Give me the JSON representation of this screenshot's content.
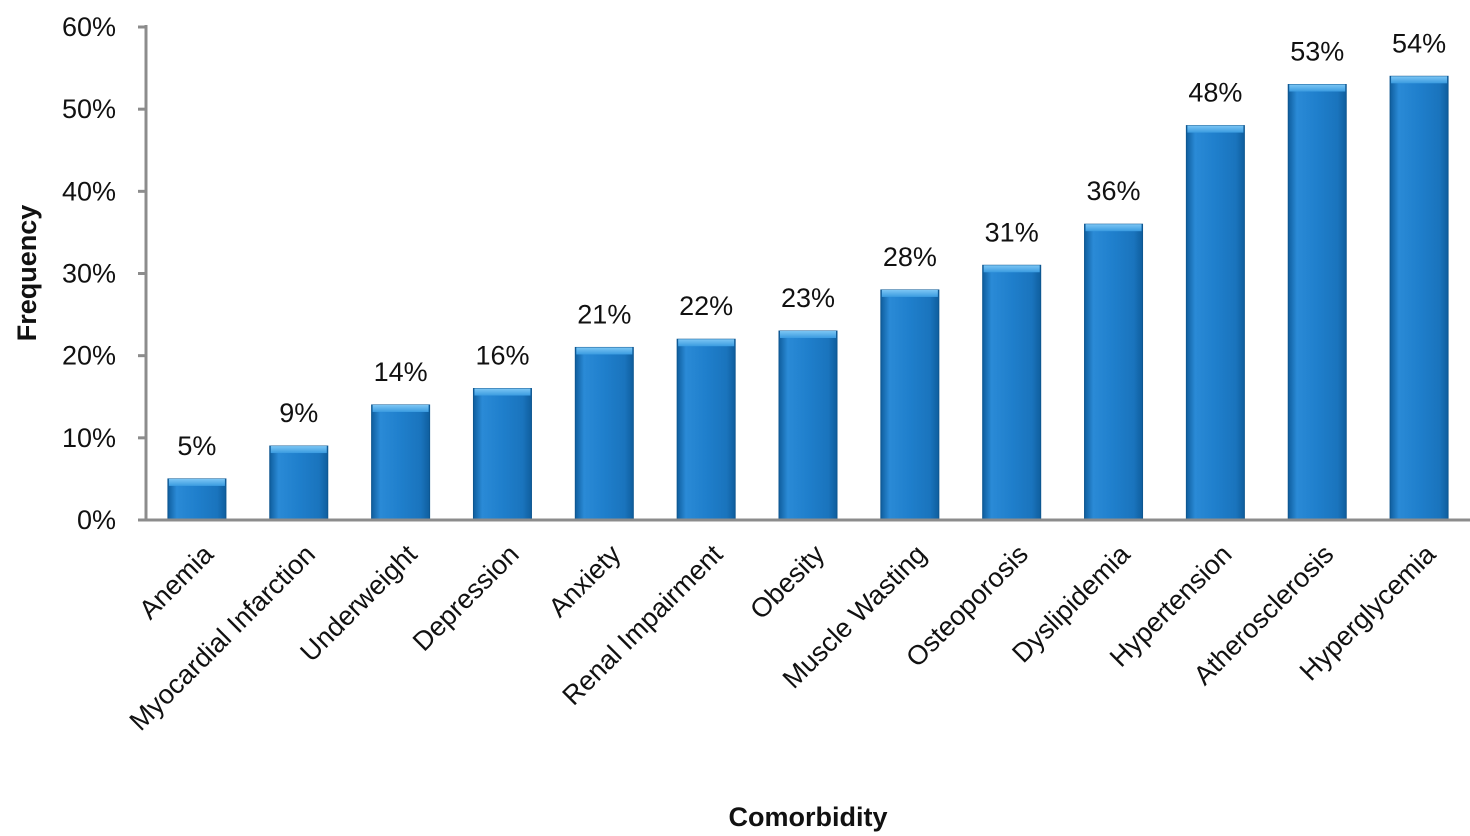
{
  "chart_data": {
    "type": "bar",
    "title": "",
    "xlabel": "Comorbidity",
    "ylabel": "Frequency",
    "ylim": [
      0,
      0.6
    ],
    "yticks": [
      0,
      0.1,
      0.2,
      0.3,
      0.4,
      0.5,
      0.6
    ],
    "ytick_labels": [
      "0%",
      "10%",
      "20%",
      "30%",
      "40%",
      "50%",
      "60%"
    ],
    "categories": [
      "Anemia",
      "Myocardial Infarction",
      "Underweight",
      "Depression",
      "Anxiety",
      "Renal Impairment",
      "Obesity",
      "Muscle Wasting",
      "Osteoporosis",
      "Dyslipidemia",
      "Hypertension",
      "Atherosclerosis",
      "Hyperglycemia"
    ],
    "values": [
      0.05,
      0.09,
      0.14,
      0.16,
      0.21,
      0.22,
      0.23,
      0.28,
      0.31,
      0.36,
      0.48,
      0.53,
      0.54
    ],
    "data_labels": [
      "5%",
      "9%",
      "14%",
      "16%",
      "21%",
      "22%",
      "23%",
      "28%",
      "31%",
      "36%",
      "48%",
      "53%",
      "54%"
    ],
    "grid": false,
    "legend": "none",
    "colors": {
      "bar": "#1f7fcc",
      "bar_light": "#5ab4ee",
      "bar_dark": "#0f5e9e",
      "axis": "#8c8c8c"
    }
  }
}
